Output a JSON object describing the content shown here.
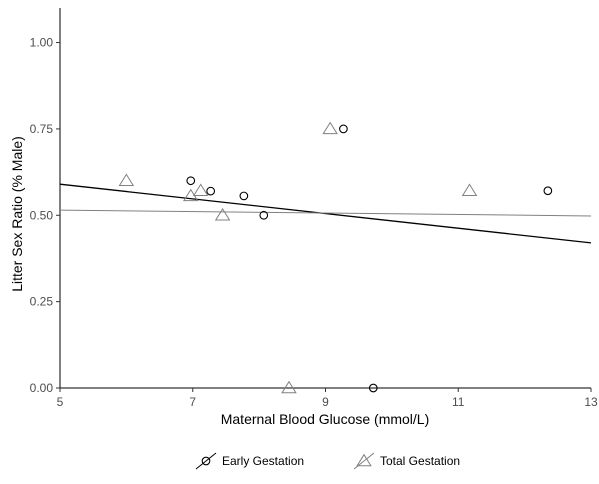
{
  "chart_data": {
    "type": "scatter",
    "title": "",
    "xlabel": "Maternal Blood Glucose (mmol/L)",
    "ylabel": "Litter Sex Ratio (% Male)",
    "xlim": [
      5,
      13
    ],
    "ylim": [
      0,
      1.1
    ],
    "x_ticks": [
      5,
      7,
      9,
      11,
      13
    ],
    "y_ticks": [
      0,
      0.25,
      0.5,
      0.75,
      1.0
    ],
    "x_tick_labels": [
      "5",
      "7",
      "9",
      "11",
      "13"
    ],
    "y_tick_labels": [
      "0.00",
      "0.25",
      "0.50",
      "0.75",
      "1.00"
    ],
    "grid": false,
    "legend_position": "bottom",
    "series": [
      {
        "name": "Early Gestation",
        "marker": "circle",
        "color": "#000000",
        "points": [
          {
            "x": 6.97,
            "y": 0.6
          },
          {
            "x": 7.27,
            "y": 0.57
          },
          {
            "x": 7.77,
            "y": 0.556
          },
          {
            "x": 8.07,
            "y": 0.5
          },
          {
            "x": 9.27,
            "y": 0.75
          },
          {
            "x": 9.72,
            "y": 0.0
          },
          {
            "x": 12.35,
            "y": 0.571
          }
        ],
        "trendline": {
          "x": [
            5,
            13
          ],
          "y": [
            0.59,
            0.42
          ]
        }
      },
      {
        "name": "Total Gestation",
        "marker": "triangle",
        "color": "#808080",
        "points": [
          {
            "x": 6.0,
            "y": 0.6
          },
          {
            "x": 6.97,
            "y": 0.556
          },
          {
            "x": 7.12,
            "y": 0.571
          },
          {
            "x": 7.45,
            "y": 0.5
          },
          {
            "x": 8.45,
            "y": 0.0
          },
          {
            "x": 9.07,
            "y": 0.75
          },
          {
            "x": 11.17,
            "y": 0.571
          }
        ],
        "trendline": {
          "x": [
            5,
            13
          ],
          "y": [
            0.515,
            0.498
          ]
        }
      }
    ]
  }
}
